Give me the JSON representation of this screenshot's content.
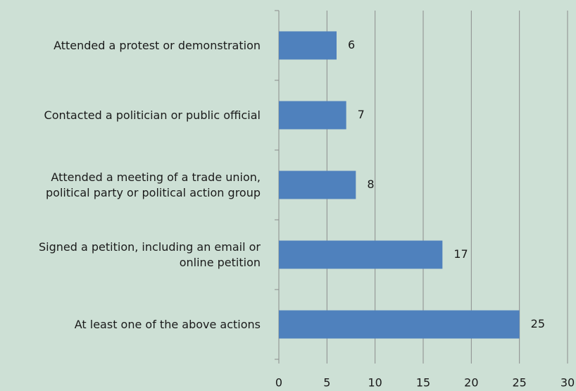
{
  "chart_data": {
    "type": "bar",
    "orientation": "horizontal",
    "categories": [
      "Attended a protest or demonstration",
      "Contacted a politician or public official",
      "Attended a meeting of a trade union, political party or political action group",
      "Signed a petition, including an email or online petition",
      "At least one of the above actions"
    ],
    "values": [
      6,
      7,
      8,
      17,
      25
    ],
    "color": "#4f81bd",
    "xlim": [
      0,
      30
    ],
    "xticks": [
      0,
      5,
      10,
      15,
      20,
      25,
      30
    ],
    "grid": true
  }
}
